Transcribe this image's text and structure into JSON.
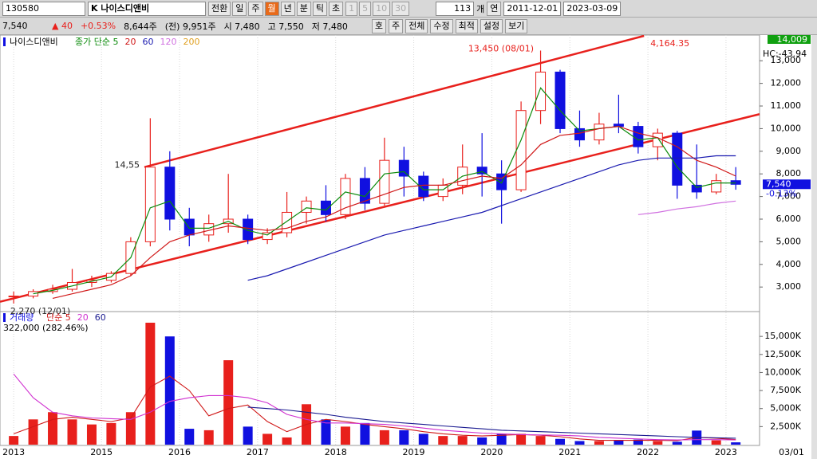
{
  "toolbar": {
    "code": "130580",
    "name": "K 나이스디앤비",
    "buttons": [
      "전환",
      "일",
      "주",
      "월",
      "년",
      "분",
      "틱",
      "초"
    ],
    "active_button": 3,
    "interval_buttons": [
      "1",
      "5",
      "10",
      "30"
    ],
    "count": "113",
    "count_unit": "개",
    "range_label": "연",
    "start_date": "2011-12-01",
    "end_date": "2023-03-09"
  },
  "info_bar": {
    "price": "7,540",
    "change": "▲ 40",
    "change_pct": "+0.53%",
    "volume": "8,644주",
    "prev_volume": "(전) 9,951주",
    "open": "시 7,480",
    "high": "고 7,550",
    "low": "저 7,480",
    "buttons": [
      "호",
      "주",
      "전체",
      "수정",
      "최적",
      "설정",
      "보기"
    ]
  },
  "chart_data": [
    {
      "type": "candlestick",
      "title": "나이스디앤비",
      "x": [
        2013.875,
        2014.125,
        2014.375,
        2014.625,
        2014.875,
        2015.125,
        2015.375,
        2015.625,
        2015.875,
        2016.125,
        2016.375,
        2016.625,
        2016.875,
        2017.125,
        2017.375,
        2017.625,
        2017.875,
        2018.125,
        2018.375,
        2018.625,
        2018.875,
        2019.125,
        2019.375,
        2019.625,
        2019.875,
        2020.125,
        2020.375,
        2020.625,
        2020.875,
        2021.125,
        2021.375,
        2021.625,
        2021.875,
        2022.125,
        2022.375,
        2022.625,
        2022.875,
        2023.125
      ],
      "open": [
        2600,
        2600,
        2800,
        2900,
        3200,
        3300,
        3600,
        5000,
        8300,
        6000,
        5300,
        5800,
        6000,
        5100,
        5400,
        6300,
        6800,
        6200,
        7800,
        6700,
        8600,
        7900,
        7000,
        7500,
        8300,
        8000,
        7300,
        10800,
        12500,
        10000,
        9500,
        10200,
        10100,
        9200,
        9800,
        7500,
        7200,
        7700
      ],
      "high": [
        2800,
        2900,
        3100,
        3800,
        3500,
        3700,
        5200,
        10460,
        9000,
        6500,
        6200,
        8000,
        6200,
        5600,
        7200,
        7000,
        7500,
        8000,
        8300,
        9600,
        9200,
        8100,
        7800,
        9300,
        9800,
        8600,
        11200,
        13450,
        12600,
        10800,
        10700,
        11500,
        10300,
        10000,
        9900,
        9300,
        8000,
        8300
      ],
      "low": [
        2270,
        2500,
        2700,
        2800,
        3000,
        3200,
        3500,
        4800,
        5500,
        4800,
        5000,
        5400,
        4900,
        4900,
        5200,
        5800,
        5900,
        6000,
        6400,
        6600,
        7000,
        6800,
        6800,
        7100,
        7000,
        5800,
        7200,
        10200,
        9800,
        9200,
        9300,
        9800,
        8900,
        8600,
        6900,
        6900,
        7100,
        7300
      ],
      "close": [
        2600,
        2800,
        2900,
        3200,
        3300,
        3600,
        5000,
        8300,
        6000,
        5300,
        5800,
        6000,
        5100,
        5400,
        6300,
        6800,
        6200,
        7800,
        6700,
        8600,
        7900,
        7000,
        7500,
        8300,
        8000,
        7300,
        10800,
        12500,
        10000,
        9500,
        10200,
        10100,
        9200,
        9800,
        7500,
        7200,
        7700,
        7540
      ],
      "up_color": "#e8201c",
      "down_color": "#1010e0",
      "series": [
        {
          "name": "종가 단순 5",
          "color": "#0a8a0a",
          "values": [
            null,
            2700,
            2850,
            3050,
            3250,
            3450,
            4300,
            6500,
            6800,
            5600,
            5600,
            5900,
            5500,
            5300,
            5900,
            6500,
            6400,
            7200,
            7000,
            8000,
            8100,
            7300,
            7300,
            7900,
            8100,
            7600,
            9500,
            11800,
            10800,
            9900,
            10000,
            10100,
            9500,
            9600,
            8300,
            7400,
            7600,
            7600
          ]
        },
        {
          "name": "20",
          "color": "#d01818",
          "values": [
            null,
            null,
            2500,
            2700,
            2900,
            3100,
            3500,
            4300,
            5000,
            5300,
            5500,
            5700,
            5600,
            5500,
            5600,
            5900,
            6100,
            6500,
            6800,
            7100,
            7400,
            7500,
            7500,
            7700,
            7900,
            7800,
            8400,
            9300,
            9700,
            9800,
            10000,
            10100,
            9800,
            9600,
            9200,
            8600,
            8300,
            7900
          ]
        },
        {
          "name": "60",
          "color": "#1a1ab0",
          "values": [
            null,
            null,
            null,
            null,
            null,
            null,
            null,
            null,
            null,
            null,
            null,
            null,
            3300,
            3500,
            3800,
            4100,
            4400,
            4700,
            5000,
            5300,
            5500,
            5700,
            5900,
            6100,
            6300,
            6600,
            6900,
            7200,
            7500,
            7800,
            8100,
            8400,
            8600,
            8700,
            8700,
            8700,
            8800,
            8800
          ]
        },
        {
          "name": "120",
          "color": "#d070e0",
          "values": [
            null,
            null,
            null,
            null,
            null,
            null,
            null,
            null,
            null,
            null,
            null,
            null,
            null,
            null,
            null,
            null,
            null,
            null,
            null,
            null,
            null,
            null,
            null,
            null,
            null,
            null,
            null,
            null,
            null,
            null,
            null,
            null,
            6200,
            6300,
            6450,
            6550,
            6700,
            6800
          ]
        },
        {
          "name": "200",
          "color": "#e0a020",
          "values": [
            null,
            null,
            null,
            null,
            null,
            null,
            null,
            null,
            null,
            null,
            null,
            null,
            null,
            null,
            null,
            null,
            null,
            null,
            null,
            null,
            null,
            null,
            null,
            null,
            null,
            null,
            null,
            null,
            null,
            null,
            null,
            null,
            null,
            null,
            null,
            null,
            null,
            null
          ]
        }
      ],
      "trendlines": [
        {
          "x": [
            2015.55,
            2021.95
          ],
          "y": [
            8300,
            14100
          ],
          "color": "#e8201c"
        },
        {
          "x": [
            2013.7,
            2023.43
          ],
          "y": [
            2350,
            10640
          ],
          "color": "#e8201c"
        }
      ],
      "annotations": [
        {
          "text": "13,450 (08/01)",
          "x": 2020.6,
          "y": 13450
        },
        {
          "text": "2,270 (12/01)",
          "x": 2013.75,
          "y": 2270
        },
        {
          "text": "14,55",
          "x": 2015.55,
          "y": 8300
        },
        {
          "text": "4,164.35",
          "x": 2021.95,
          "y": 14100
        }
      ],
      "badges": {
        "top": "14,009",
        "hc": "HC:-43.94",
        "last": "7,540",
        "change": "-0.13%"
      },
      "xlim": [
        2013.7,
        2023.43
      ],
      "xticks": [
        {
          "value": 2013.875,
          "label": "2013"
        },
        2015,
        2016,
        2017,
        2018,
        2019,
        2020,
        2021,
        2022,
        2023
      ],
      "ylim": [
        1950,
        14100
      ],
      "yticks": [
        {
          "value": 3000,
          "label": "3,000"
        },
        {
          "value": 4000,
          "label": "4,000"
        },
        {
          "value": 5000,
          "label": "5,000"
        },
        {
          "value": 6000,
          "label": "6,000"
        },
        {
          "value": 7000,
          "label": "7,000"
        },
        {
          "value": 8000,
          "label": "8,000"
        },
        {
          "value": 9000,
          "label": "9,000"
        },
        {
          "value": 10000,
          "label": "10,000"
        },
        {
          "value": 11000,
          "label": "11,000"
        },
        {
          "value": 12000,
          "label": "12,000"
        },
        {
          "value": 13000,
          "label": "13,000"
        }
      ],
      "grid": true
    },
    {
      "type": "volume",
      "title": "거래량",
      "last_label": "322,000 (282.46%)",
      "end_label": "03/01",
      "values": [
        1200,
        3500,
        4500,
        3500,
        2800,
        3000,
        4500,
        16900,
        15000,
        2200,
        2000,
        11700,
        2500,
        1500,
        1000,
        5600,
        3500,
        2500,
        3000,
        2000,
        2000,
        1500,
        1200,
        1200,
        1000,
        1500,
        1500,
        1200,
        800,
        500,
        500,
        600,
        700,
        500,
        400,
        1950,
        600,
        322
      ],
      "series": [
        {
          "name": "단순 5",
          "color": "#d01818",
          "values": [
            1500,
            2500,
            3500,
            3800,
            3500,
            3200,
            3700,
            8000,
            9500,
            7500,
            4000,
            5000,
            5500,
            3200,
            1800,
            2800,
            3500,
            3200,
            2800,
            2500,
            2200,
            1800,
            1500,
            1300,
            1200,
            1300,
            1400,
            1300,
            1100,
            800,
            600,
            600,
            600,
            600,
            550,
            1000,
            900,
            700
          ]
        },
        {
          "name": "20",
          "color": "#d030d0",
          "values": [
            9800,
            6500,
            4500,
            4000,
            3700,
            3600,
            3500,
            4500,
            6000,
            6500,
            6800,
            6800,
            6500,
            5800,
            4200,
            3500,
            3000,
            3000,
            2900,
            2800,
            2600,
            2300,
            2000,
            1800,
            1600,
            1500,
            1400,
            1350,
            1300,
            1200,
            1000,
            900,
            800,
            700,
            650,
            700,
            700,
            650
          ]
        },
        {
          "name": "60",
          "color": "#1a1a90",
          "values": [
            null,
            null,
            null,
            null,
            null,
            null,
            null,
            null,
            null,
            null,
            null,
            null,
            5200,
            5000,
            4800,
            4500,
            4200,
            3800,
            3500,
            3200,
            3000,
            2800,
            2600,
            2400,
            2200,
            2000,
            1900,
            1800,
            1700,
            1600,
            1500,
            1400,
            1300,
            1200,
            1100,
            1000,
            950,
            900
          ]
        }
      ],
      "ylim": [
        0,
        18000
      ],
      "yticks": [
        {
          "value": 2500,
          "label": "2,500K"
        },
        {
          "value": 5000,
          "label": "5,000K"
        },
        {
          "value": 7500,
          "label": "7,500K"
        },
        {
          "value": 10000,
          "label": "10,000K"
        },
        {
          "value": 12500,
          "label": "12,500K"
        },
        {
          "value": 15000,
          "label": "15,000K"
        }
      ]
    }
  ]
}
